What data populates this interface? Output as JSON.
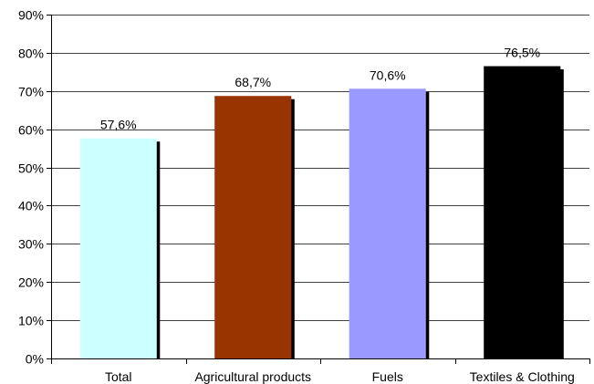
{
  "chart_data": {
    "type": "bar",
    "categories": [
      "Total",
      "Agricultural products",
      "Fuels",
      "Textiles & Clothing"
    ],
    "values": [
      57.6,
      68.7,
      70.6,
      76.5
    ],
    "value_labels": [
      "57,6%",
      "68,7%",
      "70,6%",
      "76,5%"
    ],
    "colors": [
      "#ccffff",
      "#993300",
      "#9999ff",
      "#000000"
    ],
    "shadow_color": "#000000",
    "ylim": [
      0,
      90
    ],
    "yticks": [
      0,
      10,
      20,
      30,
      40,
      50,
      60,
      70,
      80,
      90
    ],
    "ytick_labels": [
      "0%",
      "10%",
      "20%",
      "30%",
      "40%",
      "50%",
      "60%",
      "70%",
      "80%",
      "90%"
    ],
    "grid": true,
    "grid_color": "#000000",
    "legend": "none",
    "title": "",
    "xlabel": "",
    "ylabel": ""
  }
}
